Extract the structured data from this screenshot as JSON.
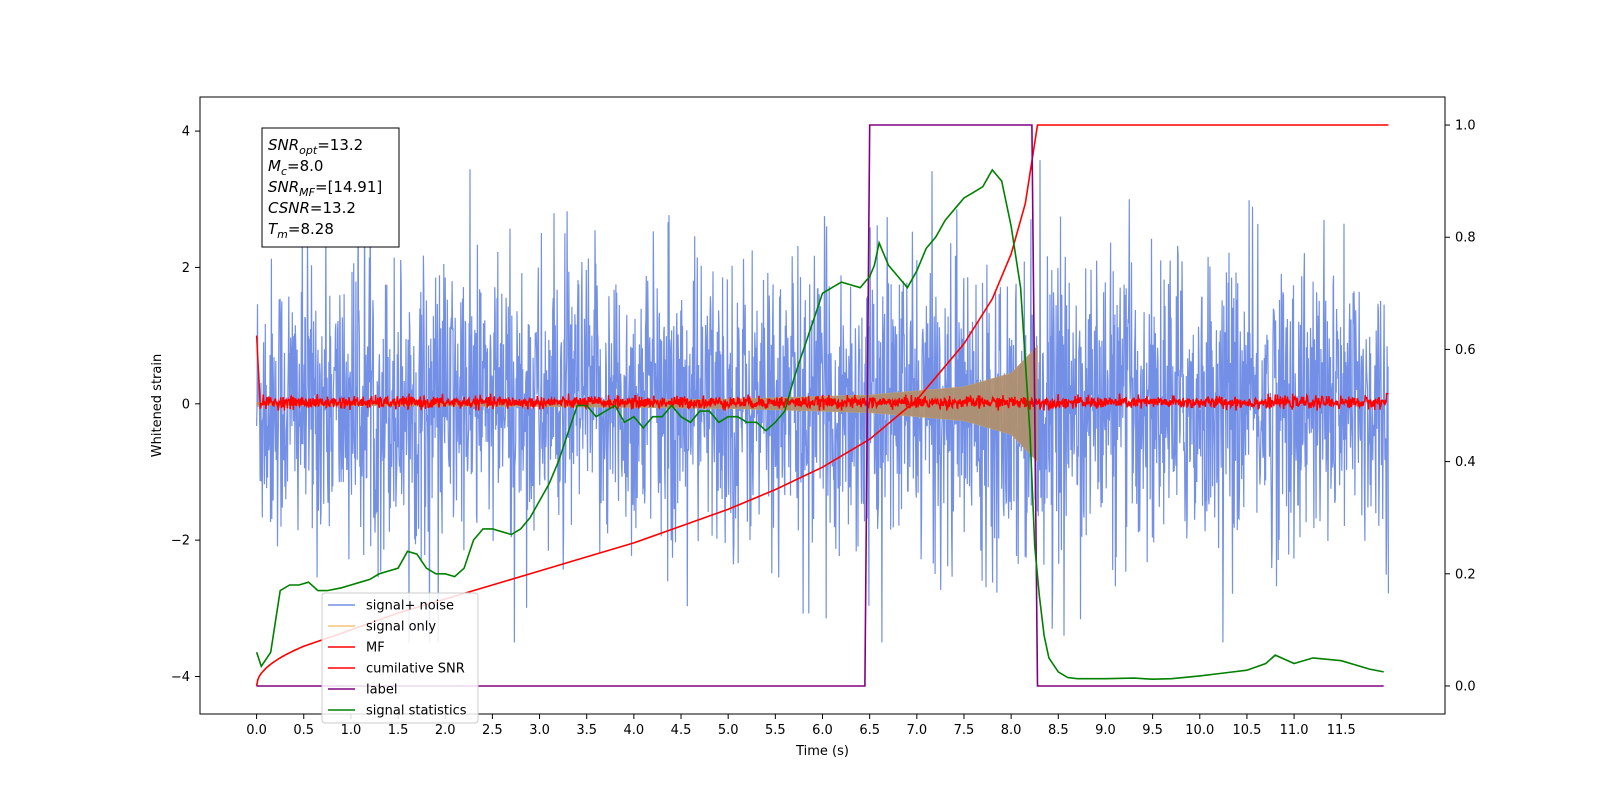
{
  "chart_data": {
    "type": "line",
    "xlabel": "Time (s)",
    "ylabel": "Whitened strain",
    "xlim": [
      -0.6,
      12.6
    ],
    "ylim": [
      -4.55,
      4.5
    ],
    "y2lim": [
      -0.05,
      1.05
    ],
    "x_ticks": [
      "0.0",
      "0.5",
      "1.0",
      "1.5",
      "2.0",
      "2.5",
      "3.0",
      "3.5",
      "4.0",
      "4.5",
      "5.0",
      "5.5",
      "6.0",
      "6.5",
      "7.0",
      "7.5",
      "8.0",
      "8.5",
      "9.0",
      "9.5",
      "10.0",
      "10.5",
      "11.0",
      "11.5"
    ],
    "y_ticks": [
      "4",
      "2",
      "0",
      "−2",
      "−4"
    ],
    "y2_ticks": [
      "1.0",
      "0.8",
      "0.6",
      "0.4",
      "0.2",
      "0.0"
    ],
    "grid": false,
    "legend_position": "lower-left",
    "annotation": {
      "lines": [
        {
          "label": "SNR",
          "sub": "opt",
          "value": "=13.2"
        },
        {
          "label": "M",
          "sub": "c",
          "value": "=8.0"
        },
        {
          "label": "SNR",
          "sub": "MF",
          "value": "=[14.91]"
        },
        {
          "label": "CSNR",
          "sub": "",
          "value": "=13.2"
        },
        {
          "label": "T",
          "sub": "m",
          "value": "=8.28"
        }
      ]
    },
    "series": [
      {
        "name": "signal+ noise",
        "color": "#7390e6",
        "axis": "left",
        "kind": "noise",
        "x_range": [
          0,
          12
        ],
        "amplitude_range": [
          -3.5,
          4.1
        ]
      },
      {
        "name": "signal only",
        "color": "#f5c37a",
        "axis": "left",
        "kind": "chirp",
        "x_range": [
          0,
          8.28
        ],
        "envelope": {
          "x": [
            0,
            3,
            5,
            6.5,
            7.5,
            8.0,
            8.28
          ],
          "y": [
            0.02,
            0.04,
            0.07,
            0.13,
            0.25,
            0.45,
            0.85
          ]
        }
      },
      {
        "name": "MF",
        "color": "#ff0000",
        "axis": "left",
        "kind": "noise",
        "x_range": [
          0,
          12
        ],
        "amplitude_range": [
          -0.1,
          0.15
        ]
      },
      {
        "name": "cumilative SNR",
        "color": "#ff0000",
        "axis": "right",
        "x": [
          0,
          0.5,
          1,
          1.5,
          2,
          2.5,
          3,
          3.5,
          4,
          4.5,
          5,
          5.5,
          6,
          6.5,
          7,
          7.5,
          7.8,
          8.0,
          8.15,
          8.28,
          12
        ],
        "y": [
          0,
          0.07,
          0.1,
          0.13,
          0.155,
          0.18,
          0.205,
          0.23,
          0.255,
          0.285,
          0.315,
          0.35,
          0.39,
          0.44,
          0.51,
          0.61,
          0.69,
          0.77,
          0.86,
          1.0,
          1.0
        ]
      },
      {
        "name": "label",
        "color": "#800080",
        "axis": "right",
        "x": [
          0,
          6.45,
          6.5,
          8.22,
          8.28,
          11.95
        ],
        "y": [
          0,
          0,
          1,
          1,
          0,
          0
        ]
      },
      {
        "name": "signal statistics",
        "color": "#008000",
        "axis": "right",
        "x": [
          0,
          0.05,
          0.15,
          0.25,
          0.35,
          0.45,
          0.55,
          0.65,
          0.75,
          0.9,
          1.0,
          1.1,
          1.2,
          1.3,
          1.4,
          1.5,
          1.6,
          1.7,
          1.8,
          1.9,
          2.0,
          2.1,
          2.2,
          2.3,
          2.4,
          2.5,
          2.6,
          2.7,
          2.8,
          2.9,
          3.0,
          3.1,
          3.2,
          3.3,
          3.4,
          3.5,
          3.6,
          3.7,
          3.8,
          3.9,
          4.0,
          4.1,
          4.2,
          4.3,
          4.4,
          4.5,
          4.6,
          4.7,
          4.8,
          4.9,
          5.0,
          5.1,
          5.2,
          5.3,
          5.4,
          5.5,
          5.6,
          5.7,
          5.8,
          5.9,
          6.0,
          6.1,
          6.2,
          6.3,
          6.4,
          6.5,
          6.55,
          6.6,
          6.7,
          6.8,
          6.9,
          7.0,
          7.1,
          7.2,
          7.3,
          7.4,
          7.5,
          7.6,
          7.7,
          7.8,
          7.9,
          8.0,
          8.1,
          8.2,
          8.25,
          8.3,
          8.35,
          8.4,
          8.5,
          8.6,
          8.7,
          9.0,
          9.3,
          9.5,
          9.7,
          10.0,
          10.3,
          10.5,
          10.7,
          10.8,
          11.0,
          11.2,
          11.5,
          11.8,
          11.95
        ],
        "y": [
          0.06,
          0.035,
          0.06,
          0.17,
          0.18,
          0.18,
          0.185,
          0.17,
          0.17,
          0.175,
          0.18,
          0.185,
          0.19,
          0.2,
          0.205,
          0.21,
          0.24,
          0.235,
          0.21,
          0.2,
          0.2,
          0.195,
          0.21,
          0.26,
          0.28,
          0.28,
          0.275,
          0.27,
          0.28,
          0.3,
          0.33,
          0.36,
          0.4,
          0.45,
          0.5,
          0.5,
          0.48,
          0.49,
          0.5,
          0.47,
          0.48,
          0.46,
          0.48,
          0.48,
          0.5,
          0.48,
          0.47,
          0.49,
          0.49,
          0.47,
          0.48,
          0.48,
          0.47,
          0.47,
          0.455,
          0.47,
          0.49,
          0.55,
          0.6,
          0.65,
          0.7,
          0.71,
          0.72,
          0.715,
          0.71,
          0.73,
          0.75,
          0.79,
          0.75,
          0.73,
          0.71,
          0.74,
          0.78,
          0.8,
          0.83,
          0.85,
          0.87,
          0.88,
          0.89,
          0.92,
          0.9,
          0.82,
          0.71,
          0.45,
          0.25,
          0.16,
          0.09,
          0.05,
          0.025,
          0.015,
          0.013,
          0.013,
          0.014,
          0.012,
          0.013,
          0.018,
          0.024,
          0.028,
          0.04,
          0.055,
          0.04,
          0.05,
          0.045,
          0.03,
          0.025
        ]
      }
    ]
  }
}
